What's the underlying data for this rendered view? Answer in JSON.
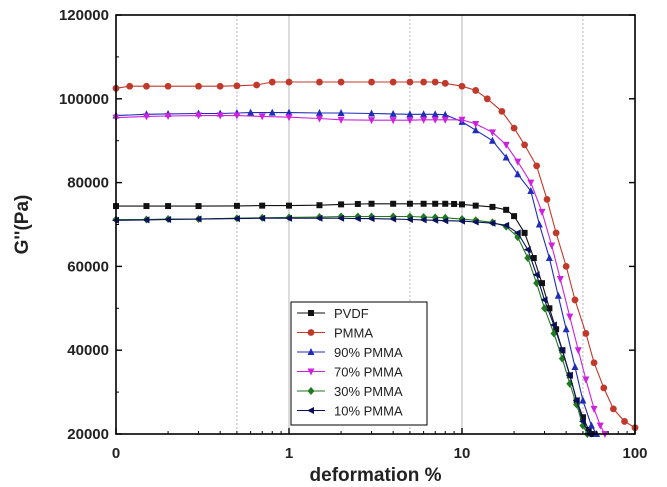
{
  "chart_data": {
    "type": "line",
    "xlabel": "deformation %",
    "ylabel": "G''(Pa)",
    "xscale": "log",
    "xlim": [
      0.1,
      100
    ],
    "ylim": [
      20000,
      120000
    ],
    "xticks": [
      {
        "value": 0.1,
        "label": "0"
      },
      {
        "value": 1,
        "label": "1"
      },
      {
        "value": 10,
        "label": "10"
      },
      {
        "value": 100,
        "label": "100"
      }
    ],
    "yticks": [
      20000,
      40000,
      60000,
      80000,
      100000,
      120000
    ],
    "vertical_gridlines": [
      0.5,
      1,
      5,
      10,
      50
    ],
    "legend_position": "bottom-center",
    "series": [
      {
        "name": "PVDF",
        "color": "#111111",
        "marker": "square",
        "points": [
          [
            0.1,
            74400
          ],
          [
            0.15,
            74400
          ],
          [
            0.2,
            74400
          ],
          [
            0.3,
            74400
          ],
          [
            0.5,
            74450
          ],
          [
            0.7,
            74500
          ],
          [
            1,
            74500
          ],
          [
            1.5,
            74600
          ],
          [
            2,
            74800
          ],
          [
            2.5,
            74900
          ],
          [
            3,
            74950
          ],
          [
            4,
            74950
          ],
          [
            5,
            74950
          ],
          [
            6,
            74950
          ],
          [
            7,
            74950
          ],
          [
            8,
            74950
          ],
          [
            9,
            74900
          ],
          [
            10,
            74800
          ],
          [
            12,
            74500
          ],
          [
            15,
            74200
          ],
          [
            18,
            73500
          ],
          [
            20,
            72000
          ],
          [
            23,
            68000
          ],
          [
            26,
            62000
          ],
          [
            29,
            56000
          ],
          [
            32,
            50000
          ],
          [
            35,
            45000
          ],
          [
            38,
            40000
          ],
          [
            42,
            34000
          ],
          [
            46,
            28000
          ],
          [
            50,
            24000
          ],
          [
            54,
            21000
          ],
          [
            57,
            20000
          ]
        ]
      },
      {
        "name": "PMMA",
        "color": "#c0392b",
        "marker": "circle",
        "points": [
          [
            0.1,
            102500
          ],
          [
            0.12,
            103000
          ],
          [
            0.15,
            103000
          ],
          [
            0.2,
            103000
          ],
          [
            0.3,
            103000
          ],
          [
            0.4,
            103000
          ],
          [
            0.5,
            103100
          ],
          [
            0.65,
            103300
          ],
          [
            0.8,
            104000
          ],
          [
            1,
            104000
          ],
          [
            1.5,
            104000
          ],
          [
            2,
            104000
          ],
          [
            3,
            104000
          ],
          [
            4,
            104000
          ],
          [
            5,
            104000
          ],
          [
            6,
            104000
          ],
          [
            7,
            104000
          ],
          [
            8,
            103700
          ],
          [
            10,
            103000
          ],
          [
            12,
            102000
          ],
          [
            14,
            100000
          ],
          [
            17,
            97000
          ],
          [
            20,
            93000
          ],
          [
            23,
            89000
          ],
          [
            27,
            84000
          ],
          [
            31,
            76000
          ],
          [
            35,
            68000
          ],
          [
            40,
            60000
          ],
          [
            45,
            52000
          ],
          [
            52,
            44000
          ],
          [
            58,
            37000
          ],
          [
            66,
            31000
          ],
          [
            75,
            26000
          ],
          [
            87,
            23000
          ],
          [
            100,
            21500
          ]
        ]
      },
      {
        "name": "90% PMMA",
        "color": "#1f2db8",
        "marker": "triangle-up",
        "points": [
          [
            0.1,
            96000
          ],
          [
            0.15,
            96300
          ],
          [
            0.2,
            96400
          ],
          [
            0.3,
            96500
          ],
          [
            0.4,
            96500
          ],
          [
            0.5,
            96600
          ],
          [
            0.6,
            96700
          ],
          [
            0.8,
            96700
          ],
          [
            1,
            96700
          ],
          [
            1.5,
            96600
          ],
          [
            2,
            96600
          ],
          [
            3,
            96500
          ],
          [
            4,
            96400
          ],
          [
            5,
            96300
          ],
          [
            6,
            96300
          ],
          [
            7,
            96300
          ],
          [
            8,
            96200
          ],
          [
            10,
            94500
          ],
          [
            12,
            92500
          ],
          [
            15,
            90000
          ],
          [
            18,
            86000
          ],
          [
            21,
            82000
          ],
          [
            25,
            78000
          ],
          [
            28,
            70000
          ],
          [
            32,
            62000
          ],
          [
            36,
            53000
          ],
          [
            40,
            45000
          ],
          [
            45,
            36000
          ],
          [
            50,
            28000
          ],
          [
            56,
            22000
          ],
          [
            60,
            20000
          ]
        ]
      },
      {
        "name": "70% PMMA",
        "color": "#cc22dd",
        "marker": "triangle-down",
        "points": [
          [
            0.1,
            95500
          ],
          [
            0.15,
            95800
          ],
          [
            0.2,
            95900
          ],
          [
            0.3,
            96000
          ],
          [
            0.4,
            96000
          ],
          [
            0.5,
            96000
          ],
          [
            0.7,
            95800
          ],
          [
            1,
            95600
          ],
          [
            1.5,
            95300
          ],
          [
            2,
            95000
          ],
          [
            3,
            94900
          ],
          [
            4,
            94900
          ],
          [
            5,
            94900
          ],
          [
            6,
            95000
          ],
          [
            7,
            95000
          ],
          [
            8,
            95000
          ],
          [
            10,
            95000
          ],
          [
            12,
            94000
          ],
          [
            15,
            92000
          ],
          [
            18,
            89000
          ],
          [
            21,
            85000
          ],
          [
            25,
            80000
          ],
          [
            29,
            73000
          ],
          [
            33,
            65000
          ],
          [
            37,
            57000
          ],
          [
            42,
            48000
          ],
          [
            47,
            40000
          ],
          [
            52,
            33000
          ],
          [
            58,
            26000
          ],
          [
            63,
            22000
          ],
          [
            67,
            20000
          ]
        ]
      },
      {
        "name": "30% PMMA",
        "color": "#1f7a1f",
        "marker": "diamond",
        "points": [
          [
            0.1,
            71200
          ],
          [
            0.15,
            71200
          ],
          [
            0.2,
            71300
          ],
          [
            0.3,
            71300
          ],
          [
            0.5,
            71500
          ],
          [
            0.7,
            71600
          ],
          [
            1,
            71700
          ],
          [
            1.5,
            71800
          ],
          [
            2,
            71900
          ],
          [
            2.5,
            71900
          ],
          [
            3,
            71900
          ],
          [
            4,
            71900
          ],
          [
            5,
            71900
          ],
          [
            6,
            71800
          ],
          [
            7,
            71700
          ],
          [
            8,
            71600
          ],
          [
            10,
            71300
          ],
          [
            12,
            71000
          ],
          [
            15,
            70500
          ],
          [
            18,
            69500
          ],
          [
            21,
            67000
          ],
          [
            24,
            62000
          ],
          [
            27,
            56000
          ],
          [
            30,
            50000
          ],
          [
            34,
            44000
          ],
          [
            38,
            38000
          ],
          [
            42,
            32000
          ],
          [
            46,
            27000
          ],
          [
            50,
            22000
          ],
          [
            53,
            20000
          ]
        ]
      },
      {
        "name": "10% PMMA",
        "color": "#0a0f5a",
        "marker": "triangle-left",
        "points": [
          [
            0.1,
            71000
          ],
          [
            0.15,
            71100
          ],
          [
            0.2,
            71200
          ],
          [
            0.3,
            71300
          ],
          [
            0.5,
            71400
          ],
          [
            0.7,
            71500
          ],
          [
            1,
            71500
          ],
          [
            1.5,
            71500
          ],
          [
            2,
            71500
          ],
          [
            2.5,
            71400
          ],
          [
            3,
            71400
          ],
          [
            4,
            71300
          ],
          [
            5,
            71200
          ],
          [
            6,
            71100
          ],
          [
            7,
            71000
          ],
          [
            8,
            70900
          ],
          [
            10,
            70800
          ],
          [
            12,
            70600
          ],
          [
            15,
            70300
          ],
          [
            18,
            69800
          ],
          [
            21,
            68000
          ],
          [
            24,
            64000
          ],
          [
            27,
            58000
          ],
          [
            30,
            52000
          ],
          [
            34,
            46000
          ],
          [
            38,
            40000
          ],
          [
            42,
            34000
          ],
          [
            46,
            28000
          ],
          [
            50,
            23000
          ],
          [
            54,
            20000
          ]
        ]
      }
    ]
  }
}
